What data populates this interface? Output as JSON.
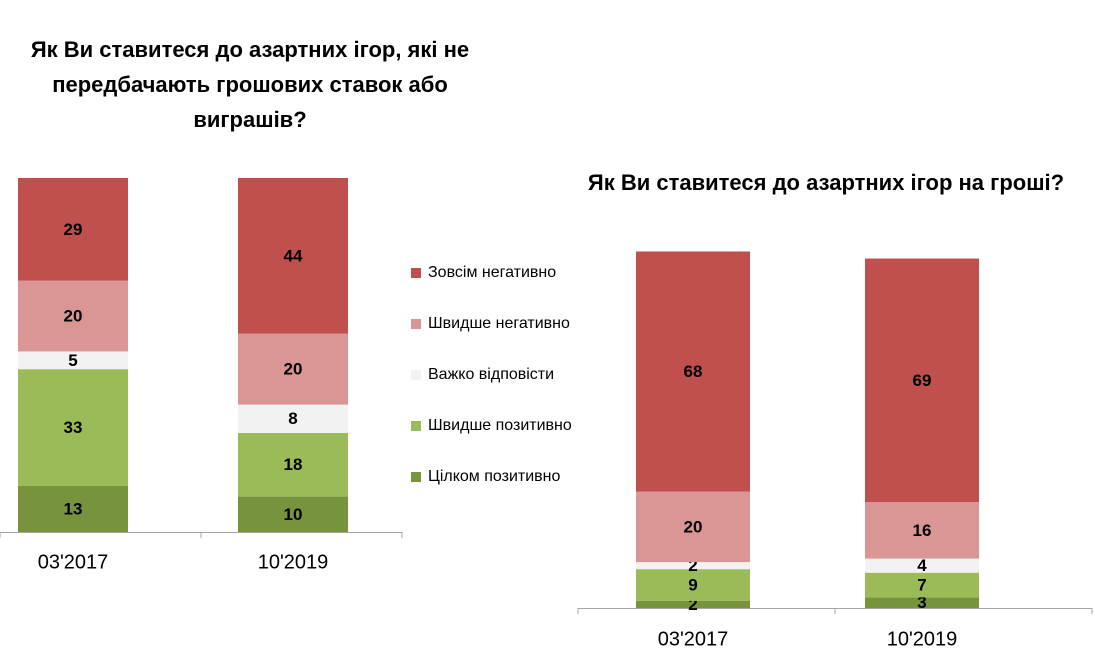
{
  "chart_data": [
    {
      "type": "stacked-bar",
      "title": "Як Ви ставитеся до азартних ігор, які не передбачають грошових ставок або виграшів?",
      "categories": [
        "03'2017",
        "10'2019"
      ],
      "series": [
        {
          "name": "Зовсім негативно",
          "color": "#c0504d",
          "values": [
            29,
            44
          ]
        },
        {
          "name": "Швидше негативно",
          "color": "#d99694",
          "values": [
            20,
            20
          ]
        },
        {
          "name": "Важко відповісти",
          "color": "#f2f2f2",
          "values": [
            5,
            8
          ]
        },
        {
          "name": "Швидше позитивно",
          "color": "#9bbb59",
          "values": [
            33,
            18
          ]
        },
        {
          "name": "Цілком позитивно",
          "color": "#77933c",
          "values": [
            13,
            10
          ]
        }
      ]
    },
    {
      "type": "stacked-bar",
      "title": "Як Ви ставитеся до азартних ігор на гроші?",
      "categories": [
        "03'2017",
        "10'2019"
      ],
      "series": [
        {
          "color": "#c0504d",
          "values": [
            68,
            69
          ]
        },
        {
          "color": "#d99694",
          "values": [
            20,
            16
          ]
        },
        {
          "color": "#f2f2f2",
          "values": [
            2,
            4
          ]
        },
        {
          "color": "#9bbb59",
          "values": [
            9,
            7
          ]
        },
        {
          "color": "#77933c",
          "values": [
            2,
            3
          ]
        }
      ]
    }
  ]
}
